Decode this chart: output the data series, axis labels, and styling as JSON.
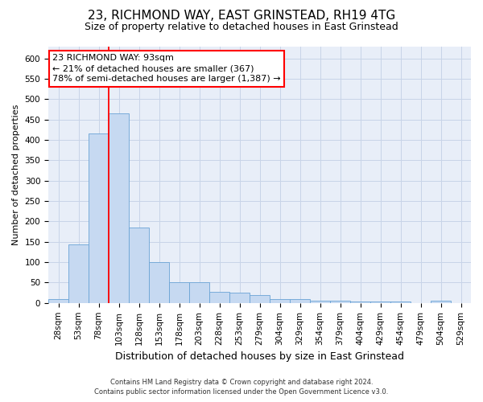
{
  "title": "23, RICHMOND WAY, EAST GRINSTEAD, RH19 4TG",
  "subtitle": "Size of property relative to detached houses in East Grinstead",
  "xlabel": "Distribution of detached houses by size in East Grinstead",
  "ylabel": "Number of detached properties",
  "footer_line1": "Contains HM Land Registry data © Crown copyright and database right 2024.",
  "footer_line2": "Contains public sector information licensed under the Open Government Licence v3.0.",
  "categories": [
    "28sqm",
    "53sqm",
    "78sqm",
    "103sqm",
    "128sqm",
    "153sqm",
    "178sqm",
    "203sqm",
    "228sqm",
    "253sqm",
    "279sqm",
    "304sqm",
    "329sqm",
    "354sqm",
    "379sqm",
    "404sqm",
    "429sqm",
    "454sqm",
    "479sqm",
    "504sqm",
    "529sqm"
  ],
  "values": [
    10,
    143,
    415,
    465,
    185,
    100,
    50,
    50,
    28,
    25,
    20,
    10,
    10,
    5,
    5,
    3,
    3,
    3,
    0,
    5,
    0
  ],
  "bar_color": "#c6d9f1",
  "bar_edge_color": "#6aa3d5",
  "red_line_x": 2.5,
  "annotation_line1": "23 RICHMOND WAY: 93sqm",
  "annotation_line2": "← 21% of detached houses are smaller (367)",
  "annotation_line3": "78% of semi-detached houses are larger (1,387) →",
  "annotation_box_color": "white",
  "annotation_box_edge": "red",
  "bg_color": "white",
  "plot_bg_color": "#e8eef8",
  "grid_color": "#c8d4e8",
  "title_fontsize": 11,
  "subtitle_fontsize": 9,
  "xlabel_fontsize": 9,
  "ylabel_fontsize": 8,
  "tick_fontsize": 7.5,
  "annotation_fontsize": 8,
  "ylim": [
    0,
    630
  ],
  "yticks": [
    0,
    50,
    100,
    150,
    200,
    250,
    300,
    350,
    400,
    450,
    500,
    550,
    600
  ]
}
